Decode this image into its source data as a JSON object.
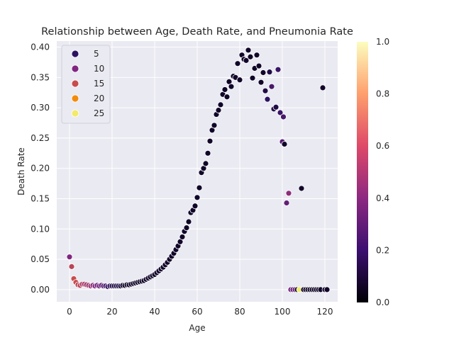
{
  "chart_data": {
    "type": "scatter",
    "title": "Relationship between Age, Death Rate, and Pneumonia Rate",
    "xlabel": "Age",
    "ylabel": "Death Rate",
    "xlim": [
      -6,
      126
    ],
    "ylim": [
      -0.02,
      0.41
    ],
    "x_ticks": [
      0,
      20,
      40,
      60,
      80,
      100,
      120
    ],
    "y_ticks": [
      0.0,
      0.05,
      0.1,
      0.15,
      0.2,
      0.25,
      0.3,
      0.35,
      0.4
    ],
    "grid": true,
    "hue_legend": {
      "placement": "top-left",
      "entries": [
        {
          "label": "5",
          "color": "#2c1160"
        },
        {
          "label": "10",
          "color": "#802582"
        },
        {
          "label": "15",
          "color": "#c84c4c"
        },
        {
          "label": "20",
          "color": "#f28b0c"
        },
        {
          "label": "25",
          "color": "#f2ea69"
        }
      ]
    },
    "colorbar": {
      "range": [
        0,
        1
      ],
      "ticks": [
        "0.0",
        "0.2",
        "0.4",
        "0.6",
        "0.8",
        "1.0"
      ]
    },
    "points": [
      [
        0,
        0.054,
        10
      ],
      [
        1,
        0.038,
        14
      ],
      [
        2,
        0.018,
        15
      ],
      [
        3,
        0.012,
        15
      ],
      [
        4,
        0.008,
        14
      ],
      [
        5,
        0.007,
        14
      ],
      [
        6,
        0.009,
        13
      ],
      [
        7,
        0.009,
        13
      ],
      [
        8,
        0.008,
        12
      ],
      [
        9,
        0.007,
        12
      ],
      [
        10,
        0.006,
        12
      ],
      [
        11,
        0.007,
        11
      ],
      [
        12,
        0.006,
        10
      ],
      [
        13,
        0.007,
        9
      ],
      [
        14,
        0.006,
        9
      ],
      [
        15,
        0.007,
        8
      ],
      [
        16,
        0.006,
        7
      ],
      [
        17,
        0.006,
        6
      ],
      [
        18,
        0.005,
        5
      ],
      [
        19,
        0.006,
        4
      ],
      [
        20,
        0.006,
        3
      ],
      [
        21,
        0.006,
        3
      ],
      [
        22,
        0.006,
        3
      ],
      [
        23,
        0.006,
        3
      ],
      [
        24,
        0.006,
        3
      ],
      [
        25,
        0.007,
        2
      ],
      [
        26,
        0.007,
        2
      ],
      [
        27,
        0.008,
        2
      ],
      [
        28,
        0.008,
        2
      ],
      [
        29,
        0.009,
        2
      ],
      [
        30,
        0.01,
        2
      ],
      [
        31,
        0.011,
        2
      ],
      [
        32,
        0.012,
        2
      ],
      [
        33,
        0.013,
        2
      ],
      [
        34,
        0.014,
        2
      ],
      [
        35,
        0.015,
        2
      ],
      [
        36,
        0.017,
        2
      ],
      [
        37,
        0.019,
        2
      ],
      [
        38,
        0.021,
        2
      ],
      [
        39,
        0.023,
        2
      ],
      [
        40,
        0.025,
        2
      ],
      [
        41,
        0.028,
        2
      ],
      [
        42,
        0.031,
        2
      ],
      [
        43,
        0.034,
        2
      ],
      [
        44,
        0.037,
        2
      ],
      [
        45,
        0.041,
        2
      ],
      [
        46,
        0.045,
        2
      ],
      [
        47,
        0.05,
        2
      ],
      [
        48,
        0.055,
        2
      ],
      [
        49,
        0.06,
        2
      ],
      [
        50,
        0.066,
        2
      ],
      [
        51,
        0.072,
        2
      ],
      [
        52,
        0.079,
        2
      ],
      [
        53,
        0.087,
        2
      ],
      [
        54,
        0.096,
        2
      ],
      [
        55,
        0.102,
        2
      ],
      [
        56,
        0.112,
        2
      ],
      [
        57,
        0.127,
        2
      ],
      [
        58,
        0.131,
        2
      ],
      [
        59,
        0.138,
        2
      ],
      [
        60,
        0.152,
        2
      ],
      [
        61,
        0.168,
        2
      ],
      [
        62,
        0.193,
        2
      ],
      [
        63,
        0.2,
        2
      ],
      [
        64,
        0.208,
        2
      ],
      [
        65,
        0.225,
        2
      ],
      [
        66,
        0.245,
        2
      ],
      [
        67,
        0.263,
        2
      ],
      [
        68,
        0.271,
        2
      ],
      [
        69,
        0.289,
        2
      ],
      [
        70,
        0.296,
        2
      ],
      [
        71,
        0.305,
        2
      ],
      [
        72,
        0.322,
        2
      ],
      [
        73,
        0.33,
        2
      ],
      [
        74,
        0.318,
        2
      ],
      [
        75,
        0.343,
        2
      ],
      [
        76,
        0.335,
        2
      ],
      [
        77,
        0.352,
        2
      ],
      [
        78,
        0.35,
        2
      ],
      [
        79,
        0.373,
        2
      ],
      [
        80,
        0.346,
        2
      ],
      [
        81,
        0.387,
        2
      ],
      [
        82,
        0.38,
        2
      ],
      [
        83,
        0.378,
        2
      ],
      [
        84,
        0.395,
        2
      ],
      [
        85,
        0.384,
        2
      ],
      [
        86,
        0.349,
        2
      ],
      [
        87,
        0.365,
        2
      ],
      [
        88,
        0.387,
        2
      ],
      [
        89,
        0.369,
        2
      ],
      [
        90,
        0.342,
        2
      ],
      [
        91,
        0.358,
        2
      ],
      [
        92,
        0.328,
        3
      ],
      [
        93,
        0.314,
        4
      ],
      [
        94,
        0.359,
        3
      ],
      [
        95,
        0.335,
        6
      ],
      [
        96,
        0.298,
        3
      ],
      [
        97,
        0.301,
        3
      ],
      [
        98,
        0.363,
        5
      ],
      [
        99,
        0.292,
        5
      ],
      [
        100,
        0.244,
        7
      ],
      [
        100.5,
        0.285,
        6
      ],
      [
        101,
        0.24,
        2
      ],
      [
        102,
        0.143,
        8
      ],
      [
        103,
        0.159,
        11
      ],
      [
        104,
        0.0,
        9
      ],
      [
        105,
        0.0,
        8
      ],
      [
        106,
        0.0,
        9
      ],
      [
        107,
        0.0,
        2
      ],
      [
        108,
        0.0,
        25
      ],
      [
        109,
        0.167,
        2
      ],
      [
        110,
        0.0,
        2
      ],
      [
        111,
        0.0,
        2
      ],
      [
        112,
        0.0,
        2
      ],
      [
        113,
        0.0,
        2
      ],
      [
        114,
        0.0,
        2
      ],
      [
        115,
        0.0,
        2
      ],
      [
        116,
        0.0,
        2
      ],
      [
        117,
        0.0,
        2
      ],
      [
        118,
        0.0,
        2
      ],
      [
        119,
        0.333,
        2
      ],
      [
        120,
        0.0,
        2
      ],
      [
        121,
        0.0,
        2
      ]
    ]
  }
}
